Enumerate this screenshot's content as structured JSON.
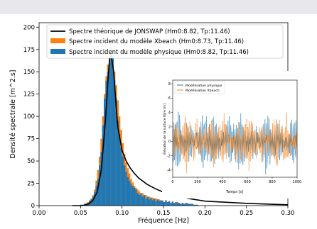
{
  "chart_data": [
    {
      "type": "bar",
      "xlabel": "Fréquence [Hz]",
      "ylabel": "Densité spectrale [m^2.s]",
      "xlim": [
        0,
        0.3
      ],
      "ylim": [
        0,
        205
      ],
      "x_ticks": [
        "0.00",
        "0.05",
        "0.10",
        "0.15",
        "0.20",
        "0.25",
        "0.30"
      ],
      "y_ticks": [
        "0",
        "25",
        "50",
        "75",
        "100",
        "125",
        "150",
        "175",
        "200"
      ],
      "legend": {
        "placement": "top",
        "entries": [
          "Spectre théorique de JONSWAP (Hm0:8.82, Tp:11.46)",
          "Spectre incident du modèle Xbeach (Hm0:8.73, Tp:11.46)",
          "Spectre incident du modèle physique (Hm0:8.82, Tp:11.46)"
        ]
      },
      "series": [
        {
          "name": "Spectre incident du modèle Xbeach (Hm0:8.73, Tp:11.46)",
          "kind": "bar",
          "color": "#ff7f0e",
          "bin_width": 0.002,
          "x": [
            0.05,
            0.052,
            0.054,
            0.056,
            0.058,
            0.06,
            0.062,
            0.064,
            0.066,
            0.068,
            0.07,
            0.072,
            0.074,
            0.076,
            0.078,
            0.08,
            0.082,
            0.084,
            0.086,
            0.088,
            0.09,
            0.092,
            0.094,
            0.096,
            0.098,
            0.1,
            0.102,
            0.104,
            0.106,
            0.108,
            0.11,
            0.112,
            0.114,
            0.116,
            0.118,
            0.12,
            0.124,
            0.128,
            0.132,
            0.136,
            0.14,
            0.144,
            0.148,
            0.152,
            0.156,
            0.16,
            0.166,
            0.172,
            0.178,
            0.184
          ],
          "values": [
            1,
            1,
            2,
            3,
            4,
            6,
            8,
            12,
            18,
            28,
            40,
            55,
            75,
            100,
            125,
            145,
            158,
            168,
            170,
            160,
            150,
            135,
            118,
            100,
            85,
            70,
            58,
            48,
            42,
            36,
            30,
            26,
            22,
            20,
            18,
            16,
            14,
            12,
            10,
            9,
            8,
            7,
            6,
            6,
            5,
            5,
            4,
            3,
            3,
            2
          ]
        },
        {
          "name": "Spectre incident du modèle physique (Hm0:8.82, Tp:11.46)",
          "kind": "bar",
          "color": "#1f77b4",
          "bin_width": 0.002,
          "x": [
            0.05,
            0.052,
            0.054,
            0.056,
            0.058,
            0.06,
            0.062,
            0.064,
            0.066,
            0.068,
            0.07,
            0.072,
            0.074,
            0.076,
            0.078,
            0.08,
            0.082,
            0.084,
            0.086,
            0.088,
            0.09,
            0.092,
            0.094,
            0.096,
            0.098,
            0.1,
            0.102,
            0.104,
            0.106,
            0.108,
            0.11,
            0.112,
            0.114,
            0.116,
            0.118,
            0.12,
            0.122,
            0.124,
            0.126,
            0.128,
            0.13,
            0.132,
            0.134,
            0.136,
            0.138,
            0.14,
            0.142,
            0.144,
            0.146,
            0.148,
            0.15,
            0.152,
            0.154,
            0.156,
            0.158,
            0.16,
            0.162,
            0.164,
            0.166,
            0.168,
            0.17,
            0.172,
            0.174,
            0.176,
            0.178,
            0.18,
            0.182,
            0.184,
            0.186,
            0.188,
            0.19
          ],
          "values": [
            1,
            1,
            2,
            2,
            3,
            5,
            7,
            10,
            15,
            22,
            30,
            45,
            60,
            90,
            120,
            140,
            150,
            160,
            178,
            165,
            140,
            120,
            95,
            80,
            65,
            55,
            45,
            38,
            32,
            28,
            24,
            22,
            20,
            18,
            14,
            12,
            14,
            10,
            12,
            8,
            10,
            7,
            9,
            6,
            8,
            5,
            7,
            5,
            6,
            5,
            4,
            6,
            4,
            5,
            3,
            4,
            3,
            4,
            3,
            3,
            2,
            3,
            2,
            3,
            2,
            2,
            2,
            2,
            1,
            1,
            1
          ]
        },
        {
          "name": "Spectre théorique de JONSWAP (Hm0:8.82, Tp:11.46)",
          "kind": "line",
          "color": "#000000",
          "x": [
            0.04,
            0.05,
            0.055,
            0.06,
            0.065,
            0.07,
            0.075,
            0.08,
            0.083,
            0.085,
            0.087,
            0.09,
            0.093,
            0.095,
            0.1,
            0.105,
            0.11,
            0.115,
            0.12,
            0.13,
            0.14,
            0.15,
            0.16,
            0.18,
            0.2,
            0.22,
            0.25,
            0.28,
            0.3
          ],
          "values": [
            0,
            0,
            0.5,
            2,
            6,
            15,
            40,
            95,
            140,
            165,
            168,
            150,
            110,
            88,
            62,
            50,
            42,
            36,
            31,
            24,
            19,
            15,
            12,
            8,
            5,
            4,
            2.5,
            1.5,
            1
          ]
        }
      ]
    },
    {
      "type": "line",
      "xlabel": "Temps [s]",
      "ylabel": "Élévation de la surface libre [m]",
      "xlim": [
        0,
        1000
      ],
      "ylim": [
        -5,
        8.5
      ],
      "x_ticks": [
        "0",
        "200",
        "400",
        "600",
        "800",
        "1000"
      ],
      "y_ticks": [
        "-4",
        "-2",
        "0",
        "2",
        "4",
        "6",
        "8"
      ],
      "legend": {
        "placement": "top-left",
        "entries": [
          "Modélisation physique",
          "Modélisation Xbeach"
        ]
      },
      "series": [
        {
          "name": "Modélisation physique",
          "color": "#1f77b4"
        },
        {
          "name": "Modélisation Xbeach",
          "color": "#ff7f0e"
        }
      ]
    }
  ]
}
